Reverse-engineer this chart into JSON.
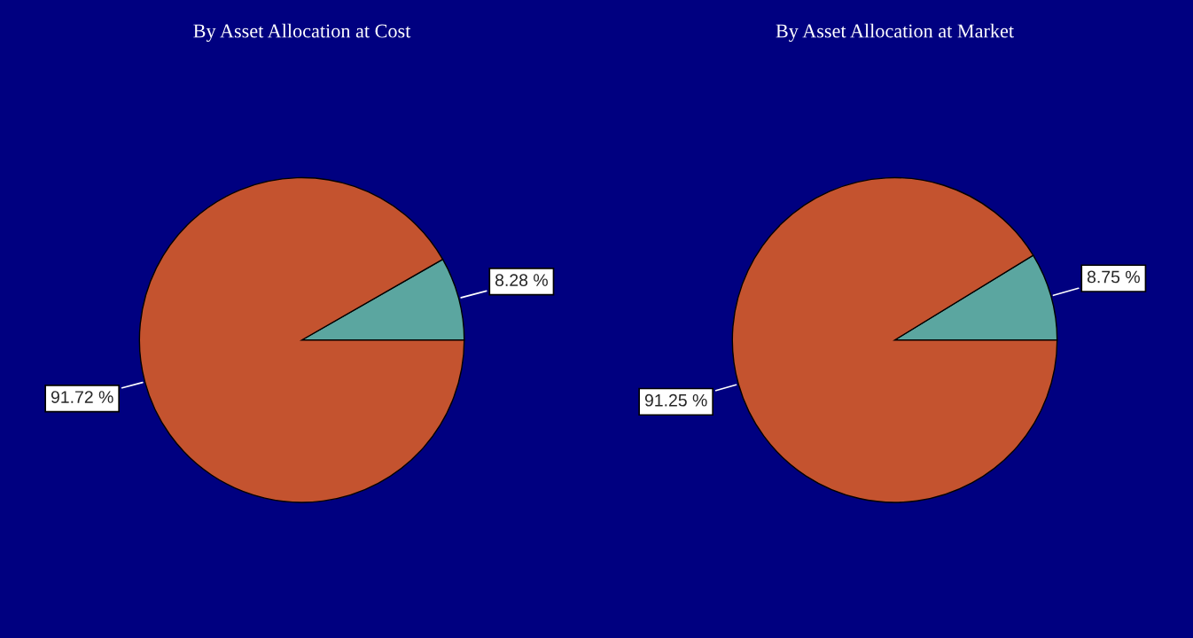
{
  "chart_data": [
    {
      "type": "pie",
      "title": "By Asset Allocation at Cost",
      "categories": [
        null,
        null
      ],
      "values": [
        8.28,
        91.72
      ],
      "colors": [
        "#5ba6a0",
        "#c4532f"
      ],
      "value_labels": [
        "8.28 %",
        "91.72 %"
      ]
    },
    {
      "type": "pie",
      "title": "By Asset Allocation at Market",
      "categories": [
        null,
        null
      ],
      "values": [
        8.75,
        91.25
      ],
      "colors": [
        "#5ba6a0",
        "#c4532f"
      ],
      "value_labels": [
        "8.75 %",
        "91.25 %"
      ]
    }
  ]
}
